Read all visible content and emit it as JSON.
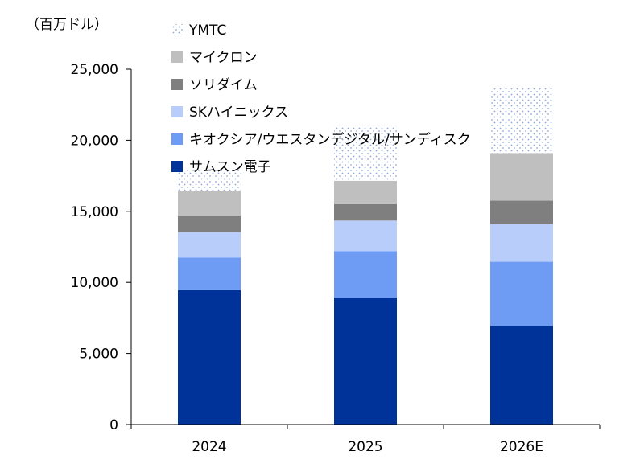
{
  "chart_data": {
    "type": "bar",
    "stacked": true,
    "y_unit_label": "（百万ドル）",
    "categories": [
      "2024",
      "2025",
      "2026E"
    ],
    "ylim": [
      0,
      25000
    ],
    "yticks": [
      "0",
      "5,000",
      "10,000",
      "15,000",
      "20,000",
      "25,000"
    ],
    "ytick_values": [
      0,
      5000,
      10000,
      15000,
      20000,
      25000
    ],
    "grid": false,
    "legend_position": "top-left",
    "series": [
      {
        "name": "サムスン電子",
        "color": "#003399",
        "values": [
          9450,
          8950,
          6950
        ]
      },
      {
        "name": "キオクシア/ウエスタンデジタル/サンディスク",
        "color": "#6e9cf5",
        "values": [
          2300,
          3250,
          4500
        ]
      },
      {
        "name": "SKハイニックス",
        "color": "#b9cdfb",
        "values": [
          1800,
          2150,
          2650
        ]
      },
      {
        "name": "ソリダイム",
        "color": "#7f7f7f",
        "values": [
          1100,
          1150,
          1650
        ]
      },
      {
        "name": "マイクロン",
        "color": "#bfbfbf",
        "values": [
          1800,
          1650,
          3350
        ]
      },
      {
        "name": "YMTC",
        "color": "#d8e4f6",
        "pattern": "dots",
        "values": [
          1450,
          3850,
          4600
        ]
      }
    ]
  }
}
